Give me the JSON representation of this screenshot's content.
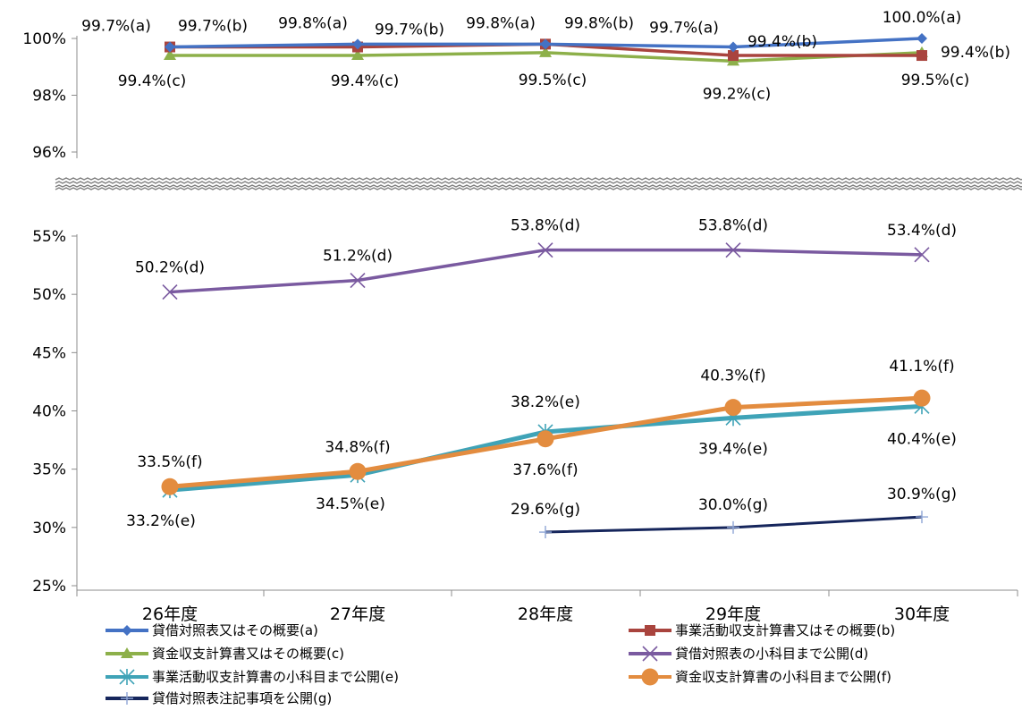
{
  "colors": {
    "a": "#4472c4",
    "b": "#a9443e",
    "c": "#8db04a",
    "d": "#7a5aa0",
    "e": "#3fa3b7",
    "f": "#e38c3f",
    "g": "#16265c"
  },
  "chart_data": {
    "type": "line",
    "categories": [
      "26年度",
      "27年度",
      "28年度",
      "29年度",
      "30年度"
    ],
    "panels": [
      {
        "name": "top",
        "ylim": [
          96,
          100
        ],
        "ticks": [
          "96%",
          "98%",
          "100%"
        ],
        "tick_values": [
          96,
          98,
          100
        ]
      },
      {
        "name": "bottom",
        "ylim": [
          25,
          55
        ],
        "ticks": [
          "25%",
          "30%",
          "35%",
          "40%",
          "45%",
          "50%",
          "55%"
        ],
        "tick_values": [
          25,
          30,
          35,
          40,
          45,
          50,
          55
        ]
      }
    ],
    "axis_break": true,
    "legend_position": "bottom",
    "series": [
      {
        "key": "a",
        "name": "貸借対照表又はその概要(a)",
        "panel": "top",
        "marker": "diamond",
        "values": [
          99.7,
          99.8,
          99.8,
          99.7,
          100.0
        ],
        "labels": [
          "99.7%(a)",
          "99.8%(a)",
          "99.8%(a)",
          "99.7%(a)",
          "100.0%(a)"
        ]
      },
      {
        "key": "b",
        "name": "事業活動収支計算書又はその概要(b)",
        "panel": "top",
        "marker": "square",
        "values": [
          99.7,
          99.7,
          99.8,
          99.4,
          99.4
        ],
        "labels": [
          "99.7%(b)",
          "99.7%(b)",
          "99.8%(b)",
          "99.4%(b)",
          "99.4%(b)"
        ]
      },
      {
        "key": "c",
        "name": "資金収支計算書又はその概要(c)",
        "panel": "top",
        "marker": "triangle",
        "values": [
          99.4,
          99.4,
          99.5,
          99.2,
          99.5
        ],
        "labels": [
          "99.4%(c)",
          "99.4%(c)",
          "99.5%(c)",
          "99.2%(c)",
          "99.5%(c)"
        ]
      },
      {
        "key": "d",
        "name": "貸借対照表の小科目まで公開(d)",
        "panel": "bottom",
        "marker": "x",
        "values": [
          50.2,
          51.2,
          53.8,
          53.8,
          53.4
        ],
        "labels": [
          "50.2%(d)",
          "51.2%(d)",
          "53.8%(d)",
          "53.8%(d)",
          "53.4%(d)"
        ]
      },
      {
        "key": "e",
        "name": "事業活動収支計算書の小科目まで公開(e)",
        "panel": "bottom",
        "marker": "star",
        "values": [
          33.2,
          34.5,
          38.2,
          39.4,
          40.4
        ],
        "labels": [
          "33.2%(e)",
          "34.5%(e)",
          "38.2%(e)",
          "39.4%(e)",
          "40.4%(e)"
        ]
      },
      {
        "key": "f",
        "name": "資金収支計算書の小科目まで公開(f)",
        "panel": "bottom",
        "marker": "circle",
        "values": [
          33.5,
          34.8,
          37.6,
          40.3,
          41.1
        ],
        "labels": [
          "33.5%(f)",
          "34.8%(f)",
          "37.6%(f)",
          "40.3%(f)",
          "41.1%(f)"
        ]
      },
      {
        "key": "g",
        "name": "貸借対照表注記事項を公開(g)",
        "panel": "bottom",
        "marker": "plus",
        "values": [
          null,
          null,
          29.6,
          30.0,
          30.9
        ],
        "labels": [
          null,
          null,
          "29.6%(g)",
          "30.0%(g)",
          "30.9%(g)"
        ]
      }
    ]
  }
}
